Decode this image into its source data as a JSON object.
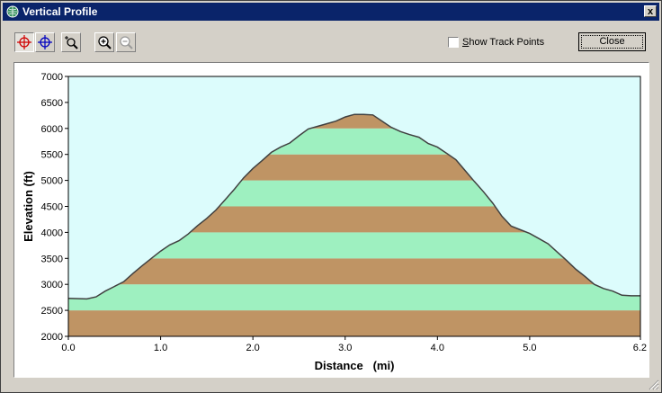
{
  "window": {
    "title": "Vertical Profile",
    "close_glyph": "x"
  },
  "toolbar": {
    "tools": [
      {
        "name": "track-point-crosshair-icon",
        "pressed": true
      },
      {
        "name": "crosshair-icon",
        "pressed": false
      },
      {
        "name": "zoom-box-icon",
        "pressed": false
      },
      {
        "name": "zoom-in-icon",
        "pressed": false
      },
      {
        "name": "zoom-out-icon",
        "pressed": false
      }
    ],
    "show_track_points_label": "Show Track Points",
    "show_track_points_checked": false,
    "close_label": "Close"
  },
  "colors": {
    "band_brown": "#bf9464",
    "band_green": "#9ef0c0",
    "sky": "#dcfcfc",
    "line": "#404040"
  },
  "chart_data": {
    "type": "area",
    "xlabel": "Distance   (mi)",
    "ylabel": "Elevation (ft)",
    "xlim": [
      0,
      6.2
    ],
    "ylim": [
      2000,
      7000
    ],
    "xticks": [
      0.0,
      1.0,
      2.0,
      3.0,
      4.0,
      5.0,
      6.2
    ],
    "xtick_labels": [
      "0.0",
      "1.0",
      "2.0",
      "3.0",
      "4.0",
      "5.0",
      "6.2"
    ],
    "yticks": [
      2000,
      2500,
      3000,
      3500,
      4000,
      4500,
      5000,
      5500,
      6000,
      6500,
      7000
    ],
    "ytick_labels": [
      "2000",
      "2500",
      "3000",
      "3500",
      "4000",
      "4500",
      "5000",
      "5500",
      "6000",
      "6500",
      "7000"
    ],
    "band_interval": 500,
    "x": [
      0.0,
      0.2,
      0.3,
      0.4,
      0.5,
      0.6,
      0.7,
      0.8,
      0.9,
      1.0,
      1.1,
      1.2,
      1.3,
      1.4,
      1.5,
      1.6,
      1.7,
      1.8,
      1.9,
      2.0,
      2.1,
      2.2,
      2.3,
      2.4,
      2.5,
      2.6,
      2.7,
      2.8,
      2.9,
      3.0,
      3.1,
      3.2,
      3.3,
      3.4,
      3.5,
      3.6,
      3.7,
      3.8,
      3.9,
      4.0,
      4.1,
      4.2,
      4.3,
      4.4,
      4.5,
      4.6,
      4.7,
      4.8,
      4.9,
      5.0,
      5.1,
      5.2,
      5.3,
      5.4,
      5.5,
      5.6,
      5.7,
      5.8,
      5.9,
      6.0,
      6.1,
      6.2
    ],
    "y": [
      2730,
      2720,
      2760,
      2870,
      2960,
      3050,
      3210,
      3360,
      3500,
      3640,
      3760,
      3840,
      3970,
      4130,
      4270,
      4430,
      4630,
      4830,
      5050,
      5230,
      5380,
      5540,
      5640,
      5720,
      5860,
      5990,
      6040,
      6090,
      6140,
      6220,
      6270,
      6270,
      6260,
      6140,
      6020,
      5940,
      5880,
      5830,
      5710,
      5640,
      5520,
      5400,
      5190,
      4980,
      4780,
      4560,
      4310,
      4120,
      4050,
      3980,
      3880,
      3780,
      3620,
      3460,
      3290,
      3150,
      3000,
      2920,
      2870,
      2790,
      2780,
      2780
    ]
  }
}
